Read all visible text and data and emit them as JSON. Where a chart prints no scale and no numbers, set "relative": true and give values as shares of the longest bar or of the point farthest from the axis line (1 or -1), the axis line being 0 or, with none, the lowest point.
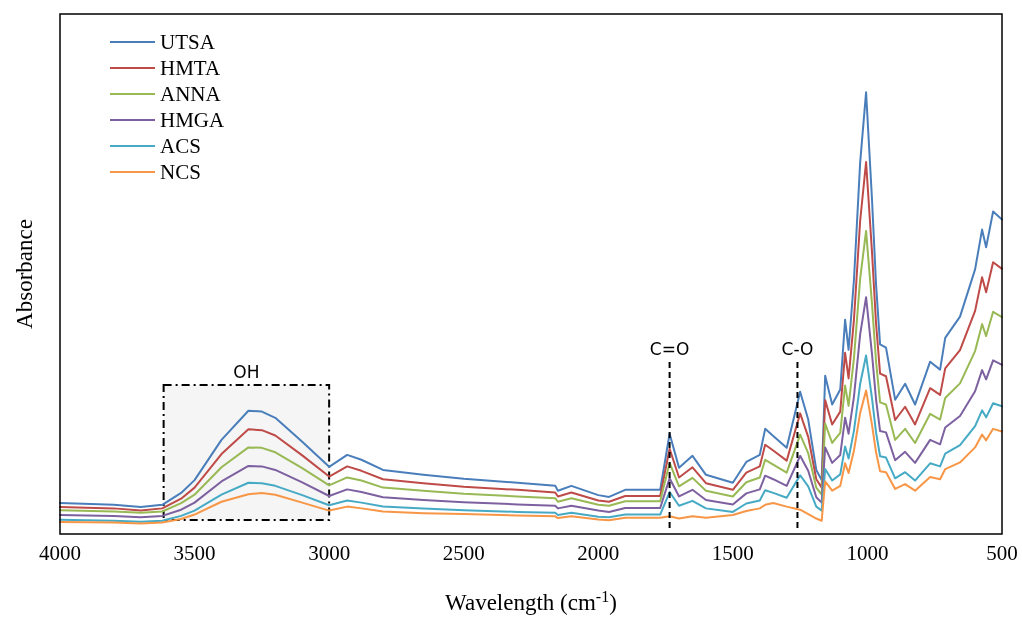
{
  "chart_data": {
    "type": "line",
    "relative": true,
    "xlabel": "Wavelength (cm$^{-1}$)",
    "ylabel": "Absorbance",
    "x": [
      4000,
      3800,
      3700,
      3620,
      3550,
      3500,
      3400,
      3300,
      3250,
      3200,
      3100,
      3000,
      2933,
      2880,
      2800,
      2650,
      2500,
      2300,
      2160,
      2150,
      2100,
      2000,
      1960,
      1900,
      1770,
      1735,
      1700,
      1650,
      1600,
      1500,
      1450,
      1400,
      1380,
      1350,
      1300,
      1250,
      1220,
      1190,
      1170,
      1157,
      1131,
      1101,
      1083,
      1070,
      1050,
      1027,
      1005,
      983,
      968,
      953,
      931,
      897,
      860,
      823,
      767,
      730,
      711,
      656,
      600,
      574,
      559,
      533,
      500
    ],
    "xlim": [
      4000,
      500
    ],
    "xticks": [
      4000,
      3500,
      3000,
      2500,
      2000,
      1500,
      1000,
      500
    ],
    "legend": "top left",
    "grid": false,
    "series": [
      {
        "name": "UTSA",
        "color": "#4a7ebb",
        "values": [
          0.07,
          0.066,
          0.061,
          0.066,
          0.093,
          0.122,
          0.213,
          0.279,
          0.277,
          0.263,
          0.209,
          0.152,
          0.179,
          0.168,
          0.145,
          0.134,
          0.125,
          0.116,
          0.109,
          0.098,
          0.109,
          0.088,
          0.084,
          0.1,
          0.1,
          0.227,
          0.15,
          0.177,
          0.134,
          0.116,
          0.163,
          0.179,
          0.238,
          0.222,
          0.195,
          0.322,
          0.259,
          0.145,
          0.122,
          0.358,
          0.293,
          0.327,
          0.485,
          0.417,
          0.576,
          0.841,
          1,
          0.757,
          0.565,
          0.429,
          0.422,
          0.304,
          0.34,
          0.293,
          0.39,
          0.372,
          0.444,
          0.492,
          0.599,
          0.689,
          0.649,
          0.73,
          0.712
        ]
      },
      {
        "name": "HMTA",
        "color": "#be4b48",
        "values": [
          0.061,
          0.058,
          0.053,
          0.058,
          0.08,
          0.105,
          0.181,
          0.237,
          0.235,
          0.223,
          0.178,
          0.13,
          0.153,
          0.143,
          0.124,
          0.115,
          0.107,
          0.1,
          0.094,
          0.085,
          0.094,
          0.076,
          0.073,
          0.086,
          0.086,
          0.193,
          0.128,
          0.151,
          0.115,
          0.1,
          0.139,
          0.153,
          0.202,
          0.189,
          0.166,
          0.273,
          0.22,
          0.124,
          0.105,
          0.303,
          0.248,
          0.277,
          0.41,
          0.352,
          0.486,
          0.709,
          0.842,
          0.638,
          0.477,
          0.363,
          0.357,
          0.258,
          0.288,
          0.248,
          0.33,
          0.315,
          0.375,
          0.416,
          0.505,
          0.581,
          0.547,
          0.615,
          0.6
        ]
      },
      {
        "name": "ANNA",
        "color": "#98b954",
        "values": [
          0.054,
          0.051,
          0.048,
          0.051,
          0.07,
          0.089,
          0.151,
          0.196,
          0.195,
          0.185,
          0.149,
          0.11,
          0.128,
          0.121,
          0.105,
          0.098,
          0.091,
          0.085,
          0.081,
          0.073,
          0.081,
          0.066,
          0.064,
          0.074,
          0.074,
          0.161,
          0.108,
          0.127,
          0.098,
          0.085,
          0.117,
          0.128,
          0.168,
          0.157,
          0.139,
          0.225,
          0.183,
          0.105,
          0.089,
          0.25,
          0.206,
          0.229,
          0.336,
          0.29,
          0.398,
          0.578,
          0.686,
          0.521,
          0.391,
          0.298,
          0.293,
          0.213,
          0.238,
          0.206,
          0.272,
          0.259,
          0.308,
          0.341,
          0.414,
          0.475,
          0.448,
          0.503,
          0.491
        ]
      },
      {
        "name": "HMGA",
        "color": "#7d60a0",
        "values": [
          0.043,
          0.041,
          0.038,
          0.041,
          0.055,
          0.071,
          0.119,
          0.154,
          0.153,
          0.145,
          0.117,
          0.086,
          0.101,
          0.095,
          0.083,
          0.077,
          0.072,
          0.067,
          0.064,
          0.058,
          0.064,
          0.053,
          0.05,
          0.059,
          0.059,
          0.126,
          0.085,
          0.1,
          0.077,
          0.067,
          0.092,
          0.101,
          0.132,
          0.124,
          0.109,
          0.177,
          0.143,
          0.083,
          0.071,
          0.196,
          0.161,
          0.179,
          0.263,
          0.227,
          0.311,
          0.452,
          0.536,
          0.407,
          0.305,
          0.233,
          0.23,
          0.167,
          0.186,
          0.161,
          0.213,
          0.203,
          0.241,
          0.267,
          0.323,
          0.371,
          0.35,
          0.393,
          0.383
        ]
      },
      {
        "name": "ACS",
        "color": "#46aac5",
        "values": [
          0.032,
          0.03,
          0.028,
          0.03,
          0.041,
          0.053,
          0.089,
          0.116,
          0.115,
          0.109,
          0.088,
          0.065,
          0.076,
          0.071,
          0.062,
          0.058,
          0.054,
          0.05,
          0.048,
          0.043,
          0.048,
          0.039,
          0.038,
          0.044,
          0.044,
          0.095,
          0.064,
          0.075,
          0.058,
          0.05,
          0.069,
          0.076,
          0.099,
          0.093,
          0.082,
          0.133,
          0.108,
          0.062,
          0.053,
          0.147,
          0.121,
          0.135,
          0.198,
          0.171,
          0.234,
          0.34,
          0.404,
          0.307,
          0.23,
          0.176,
          0.173,
          0.126,
          0.14,
          0.121,
          0.16,
          0.153,
          0.182,
          0.201,
          0.244,
          0.28,
          0.264,
          0.296,
          0.289
        ]
      },
      {
        "name": "NCS",
        "color": "#f79646",
        "values": [
          0.027,
          0.026,
          0.024,
          0.026,
          0.034,
          0.044,
          0.073,
          0.09,
          0.093,
          0.089,
          0.071,
          0.053,
          0.062,
          0.058,
          0.051,
          0.047,
          0.045,
          0.042,
          0.04,
          0.036,
          0.04,
          0.033,
          0.031,
          0.037,
          0.037,
          0.04,
          0.035,
          0.04,
          0.037,
          0.043,
          0.052,
          0.058,
          0.066,
          0.07,
          0.062,
          0.055,
          0.045,
          0.035,
          0.03,
          0.119,
          0.098,
          0.109,
          0.16,
          0.138,
          0.189,
          0.274,
          0.325,
          0.247,
          0.185,
          0.142,
          0.14,
          0.102,
          0.113,
          0.098,
          0.129,
          0.124,
          0.147,
          0.162,
          0.196,
          0.225,
          0.212,
          0.238,
          0.232
        ]
      }
    ],
    "ref_lines": [
      {
        "axis": "x",
        "value": 1735,
        "label": "C=O",
        "color": "#000000",
        "line_style": "dashed"
      },
      {
        "axis": "x",
        "value": 1260,
        "label": "C-O",
        "color": "#000000",
        "line_style": "dashed"
      }
    ],
    "bands": [
      {
        "axis": "x",
        "from": 3615,
        "to": 3000,
        "label": "OH",
        "color": "#000000"
      }
    ]
  }
}
